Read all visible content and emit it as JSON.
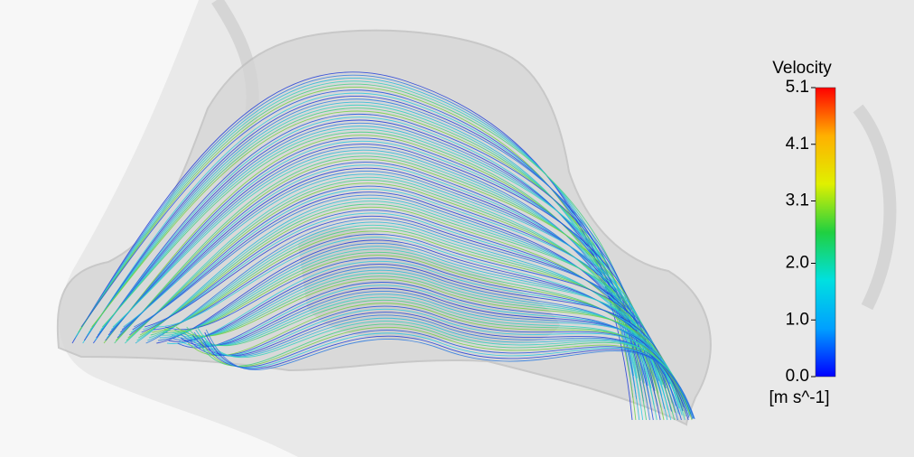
{
  "colorbar": {
    "title": "Velocity",
    "unit": "[m s^-1]",
    "range": [
      0,
      5.1
    ],
    "ticks": [
      {
        "value": 0,
        "label": "0.0"
      },
      {
        "value": 1,
        "label": "1.0"
      },
      {
        "value": 2,
        "label": "2.0"
      },
      3.1,
      4.1,
      5.1
    ],
    "colors": [
      "#0000ff",
      "#00a0ff",
      "#00e0e0",
      "#20d040",
      "#e0f000",
      "#ffb000",
      "#ff0000"
    ]
  }
}
